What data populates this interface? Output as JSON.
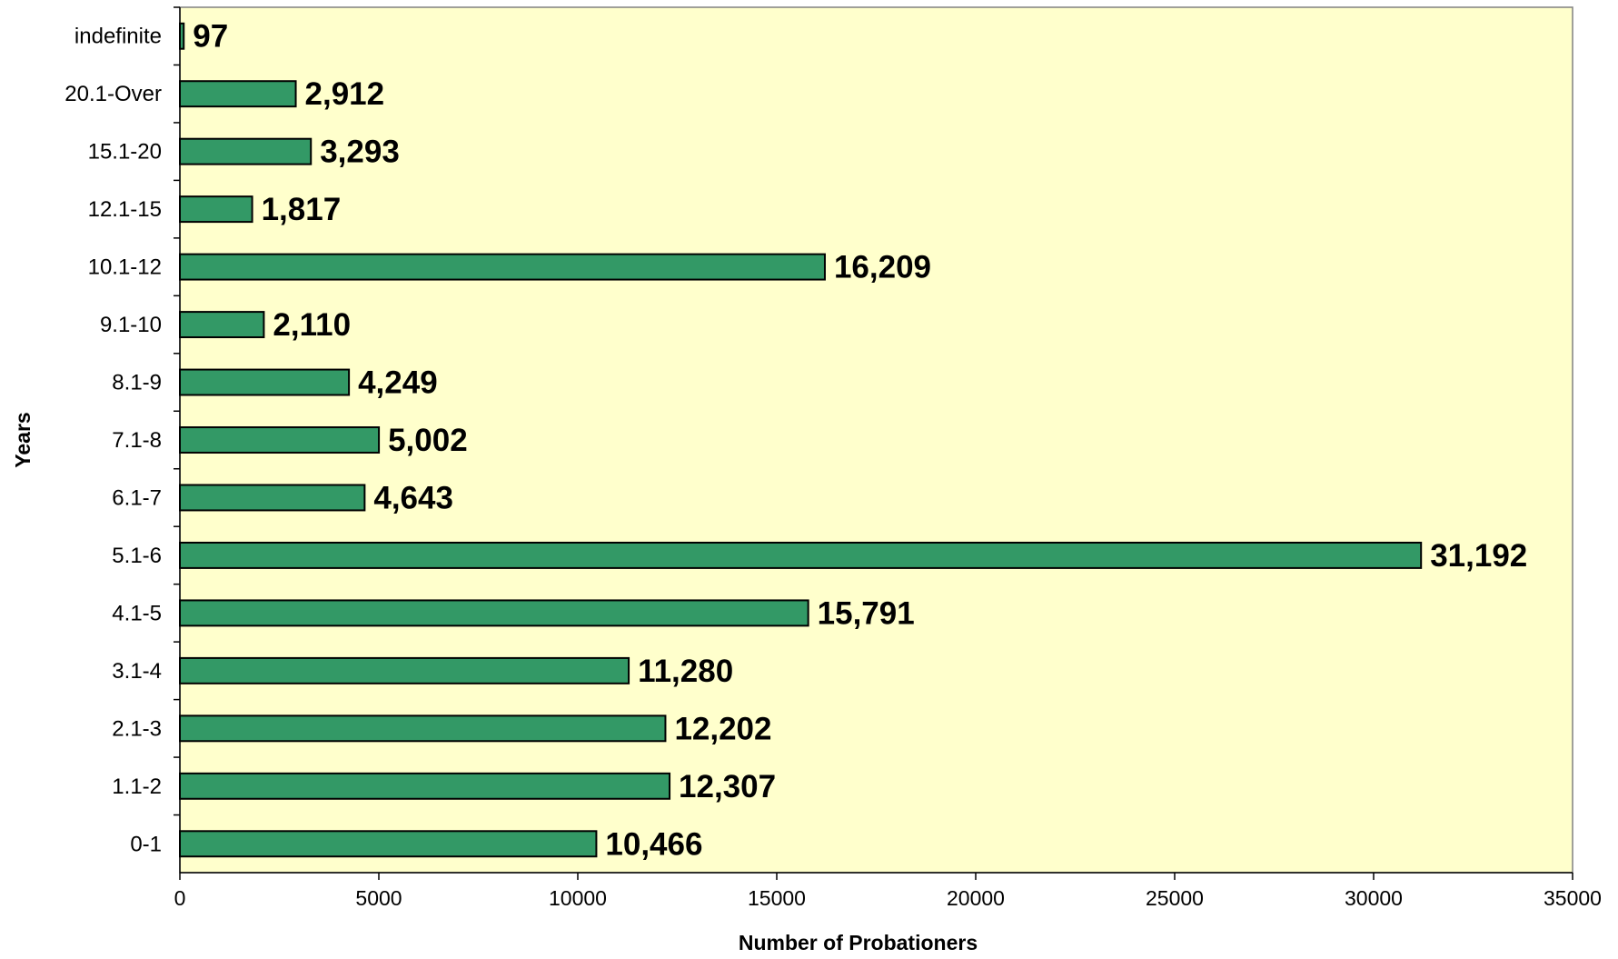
{
  "chart_data": {
    "type": "bar",
    "orientation": "horizontal",
    "categories": [
      "0-1",
      "1.1-2",
      "2.1-3",
      "3.1-4",
      "4.1-5",
      "5.1-6",
      "6.1-7",
      "7.1-8",
      "8.1-9",
      "9.1-10",
      "10.1-12",
      "12.1-15",
      "15.1-20",
      "20.1-Over",
      "indefinite"
    ],
    "values": [
      10466,
      12307,
      12202,
      11280,
      15791,
      31192,
      4643,
      5002,
      4249,
      2110,
      16209,
      1817,
      3293,
      2912,
      97
    ],
    "value_labels": [
      "10,466",
      "12,307",
      "12,202",
      "11,280",
      "15,791",
      "31,192",
      "4,643",
      "5,002",
      "4,249",
      "2,110",
      "16,209",
      "1,817",
      "3,293",
      "2,912",
      "97"
    ],
    "xlabel": "Number of Probationers",
    "ylabel": "Years",
    "xlim": [
      0,
      35000
    ],
    "xticks": [
      "0",
      "5000",
      "10000",
      "15000",
      "20000",
      "25000",
      "30000",
      "35000"
    ],
    "grid": false,
    "legend": "none",
    "colors": {
      "plot_background": "#FFFFCC",
      "bar_fill": "#339966",
      "bar_stroke": "#000000"
    }
  }
}
